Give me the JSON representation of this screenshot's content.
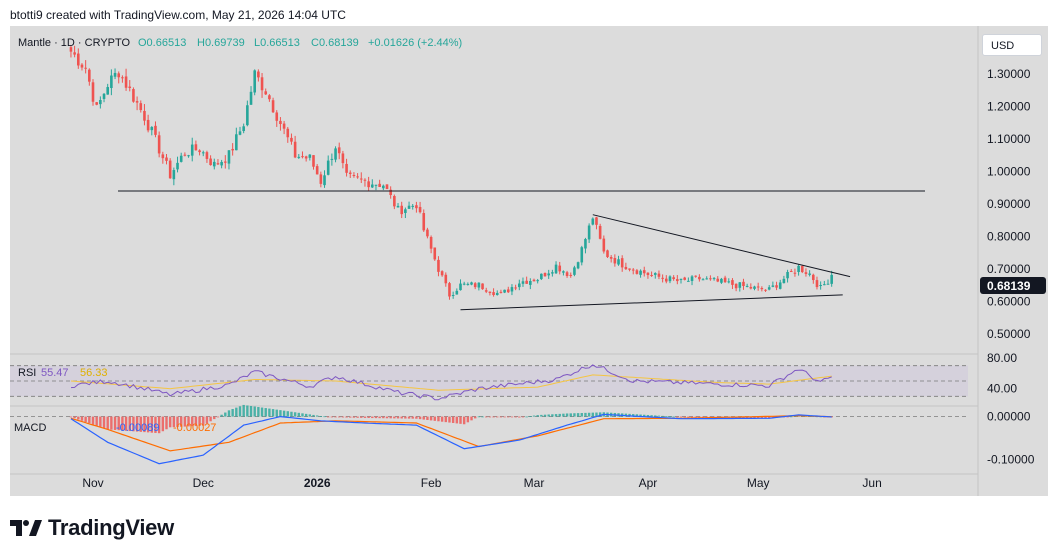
{
  "header": {
    "credit": "btotti9 created with TradingView.com, May 21, 2026 14:04 UTC"
  },
  "legend": {
    "symbol": "Mantle · 1D · CRYPTO",
    "open": "O0.66513",
    "high": "H0.69739",
    "low": "L0.66513",
    "close": "C0.68139",
    "change": "+0.01626 (+2.44%)"
  },
  "currency_button": "USD",
  "price_badge": "0.68139",
  "rsi_legend": {
    "name": "RSI",
    "value": "55.47",
    "ma": "56.33"
  },
  "macd_legend": {
    "name": "MACD",
    "macd": "-0.00089",
    "signal": "-0.00027"
  },
  "footer": {
    "brand": "TradingView"
  },
  "colors": {
    "up": "#26a69a",
    "down": "#ef5350",
    "rsi_line": "#7e57c2",
    "rsi_ma": "#f5c542",
    "macd_line": "#2962ff",
    "signal_line": "#ff6d00",
    "background": "#dcdcdc"
  },
  "chart_data": [
    {
      "type": "candlestick",
      "title": "Mantle · 1D · CRYPTO",
      "xlabels": [
        "Nov",
        "Dec",
        "2026",
        "Feb",
        "Mar",
        "Apr",
        "May",
        "Jun"
      ],
      "y_ticks": [
        "1.30000",
        "1.20000",
        "1.10000",
        "1.00000",
        "0.90000",
        "0.80000",
        "0.70000",
        "0.60000",
        "0.50000"
      ],
      "ylim": [
        0.45,
        1.39
      ],
      "grid": false,
      "last_price": 0.68139,
      "anchors": [
        {
          "date": "2025-10-26",
          "close": 1.37
        },
        {
          "date": "2025-10-30",
          "close": 1.32
        },
        {
          "date": "2025-11-02",
          "close": 1.19
        },
        {
          "date": "2025-11-05",
          "close": 1.27
        },
        {
          "date": "2025-11-08",
          "close": 1.31
        },
        {
          "date": "2025-11-11",
          "close": 1.25
        },
        {
          "date": "2025-11-15",
          "close": 1.17
        },
        {
          "date": "2025-11-19",
          "close": 1.07
        },
        {
          "date": "2025-11-22",
          "close": 0.99
        },
        {
          "date": "2025-11-26",
          "close": 1.06
        },
        {
          "date": "2025-11-30",
          "close": 1.07
        },
        {
          "date": "2025-12-04",
          "close": 1.02
        },
        {
          "date": "2025-12-08",
          "close": 1.05
        },
        {
          "date": "2025-12-12",
          "close": 1.15
        },
        {
          "date": "2025-12-15",
          "close": 1.3
        },
        {
          "date": "2025-12-18",
          "close": 1.25
        },
        {
          "date": "2025-12-22",
          "close": 1.15
        },
        {
          "date": "2025-12-26",
          "close": 1.05
        },
        {
          "date": "2025-12-30",
          "close": 1.04
        },
        {
          "date": "2026-01-02",
          "close": 0.97
        },
        {
          "date": "2026-01-06",
          "close": 1.08
        },
        {
          "date": "2026-01-09",
          "close": 0.98
        },
        {
          "date": "2026-01-14",
          "close": 0.97
        },
        {
          "date": "2026-01-19",
          "close": 0.96
        },
        {
          "date": "2026-01-23",
          "close": 0.88
        },
        {
          "date": "2026-01-28",
          "close": 0.9
        },
        {
          "date": "2026-01-30",
          "close": 0.82
        },
        {
          "date": "2026-02-03",
          "close": 0.7
        },
        {
          "date": "2026-02-06",
          "close": 0.62
        },
        {
          "date": "2026-02-09",
          "close": 0.65
        },
        {
          "date": "2026-02-14",
          "close": 0.65
        },
        {
          "date": "2026-02-20",
          "close": 0.62
        },
        {
          "date": "2026-02-25",
          "close": 0.66
        },
        {
          "date": "2026-03-02",
          "close": 0.67
        },
        {
          "date": "2026-03-07",
          "close": 0.71
        },
        {
          "date": "2026-03-11",
          "close": 0.68
        },
        {
          "date": "2026-03-14",
          "close": 0.76
        },
        {
          "date": "2026-03-17",
          "close": 0.86
        },
        {
          "date": "2026-03-20",
          "close": 0.75
        },
        {
          "date": "2026-03-24",
          "close": 0.72
        },
        {
          "date": "2026-03-28",
          "close": 0.7
        },
        {
          "date": "2026-04-02",
          "close": 0.68
        },
        {
          "date": "2026-04-06",
          "close": 0.67
        },
        {
          "date": "2026-04-10",
          "close": 0.66
        },
        {
          "date": "2026-04-15",
          "close": 0.67
        },
        {
          "date": "2026-04-20",
          "close": 0.66
        },
        {
          "date": "2026-04-25",
          "close": 0.65
        },
        {
          "date": "2026-04-30",
          "close": 0.64
        },
        {
          "date": "2026-05-04",
          "close": 0.635
        },
        {
          "date": "2026-05-08",
          "close": 0.67
        },
        {
          "date": "2026-05-12",
          "close": 0.705
        },
        {
          "date": "2026-05-15",
          "close": 0.685
        },
        {
          "date": "2026-05-18",
          "close": 0.64
        },
        {
          "date": "2026-05-20",
          "close": 0.665
        },
        {
          "date": "2026-05-21",
          "close": 0.68139
        }
      ],
      "horizontal_line": 0.94,
      "triangle_upper": [
        {
          "date": "2026-03-17",
          "price": 0.867
        },
        {
          "date": "2026-05-26",
          "price": 0.676
        }
      ],
      "triangle_lower": [
        {
          "date": "2026-02-09",
          "price": 0.574
        },
        {
          "date": "2026-05-24",
          "price": 0.62
        }
      ]
    },
    {
      "type": "line",
      "title": "RSI",
      "y_ticks": [
        "80.00",
        "40.00"
      ],
      "ylim": [
        20,
        80
      ],
      "bands": [
        70,
        50,
        30
      ],
      "series": [
        {
          "name": "RSI",
          "anchors": [
            {
              "date": "2025-10-26",
              "value": 44
            },
            {
              "date": "2025-11-05",
              "value": 50
            },
            {
              "date": "2025-11-15",
              "value": 40
            },
            {
              "date": "2025-11-22",
              "value": 32
            },
            {
              "date": "2025-12-08",
              "value": 45
            },
            {
              "date": "2025-12-15",
              "value": 62
            },
            {
              "date": "2025-12-30",
              "value": 43
            },
            {
              "date": "2026-01-06",
              "value": 56
            },
            {
              "date": "2026-01-23",
              "value": 35
            },
            {
              "date": "2026-02-03",
              "value": 27
            },
            {
              "date": "2026-02-14",
              "value": 40
            },
            {
              "date": "2026-03-07",
              "value": 52
            },
            {
              "date": "2026-03-17",
              "value": 72
            },
            {
              "date": "2026-03-28",
              "value": 50
            },
            {
              "date": "2026-04-20",
              "value": 46
            },
            {
              "date": "2026-05-04",
              "value": 44
            },
            {
              "date": "2026-05-12",
              "value": 66
            },
            {
              "date": "2026-05-18",
              "value": 48
            },
            {
              "date": "2026-05-21",
              "value": 55.47
            }
          ]
        },
        {
          "name": "RSI-based MA",
          "anchors": [
            {
              "date": "2025-10-26",
              "value": 50
            },
            {
              "date": "2025-11-22",
              "value": 40
            },
            {
              "date": "2025-12-15",
              "value": 52
            },
            {
              "date": "2026-01-06",
              "value": 50
            },
            {
              "date": "2026-02-03",
              "value": 38
            },
            {
              "date": "2026-03-02",
              "value": 42
            },
            {
              "date": "2026-03-17",
              "value": 58
            },
            {
              "date": "2026-04-20",
              "value": 48
            },
            {
              "date": "2026-05-04",
              "value": 46
            },
            {
              "date": "2026-05-21",
              "value": 56.33
            }
          ]
        }
      ]
    },
    {
      "type": "line",
      "title": "MACD",
      "y_ticks": [
        "0.00000",
        "-0.10000"
      ],
      "ylim": [
        -0.12,
        0.02
      ],
      "series": [
        {
          "name": "MACD",
          "anchors": [
            {
              "date": "2025-10-26",
              "value": -0.005
            },
            {
              "date": "2025-11-05",
              "value": -0.06
            },
            {
              "date": "2025-11-19",
              "value": -0.11
            },
            {
              "date": "2025-12-01",
              "value": -0.09
            },
            {
              "date": "2025-12-12",
              "value": -0.02
            },
            {
              "date": "2025-12-22",
              "value": 0.0
            },
            {
              "date": "2026-01-02",
              "value": -0.01
            },
            {
              "date": "2026-01-14",
              "value": -0.015
            },
            {
              "date": "2026-01-28",
              "value": -0.02
            },
            {
              "date": "2026-02-10",
              "value": -0.075
            },
            {
              "date": "2026-02-25",
              "value": -0.055
            },
            {
              "date": "2026-03-10",
              "value": -0.02
            },
            {
              "date": "2026-03-20",
              "value": 0.005
            },
            {
              "date": "2026-04-10",
              "value": -0.005
            },
            {
              "date": "2026-05-04",
              "value": -0.004
            },
            {
              "date": "2026-05-12",
              "value": 0.004
            },
            {
              "date": "2026-05-21",
              "value": -0.00089
            }
          ]
        },
        {
          "name": "Signal",
          "anchors": [
            {
              "date": "2025-10-26",
              "value": -0.004
            },
            {
              "date": "2025-11-05",
              "value": -0.03
            },
            {
              "date": "2025-11-22",
              "value": -0.08
            },
            {
              "date": "2025-12-08",
              "value": -0.06
            },
            {
              "date": "2025-12-22",
              "value": -0.015
            },
            {
              "date": "2026-01-06",
              "value": -0.01
            },
            {
              "date": "2026-01-28",
              "value": -0.015
            },
            {
              "date": "2026-02-14",
              "value": -0.07
            },
            {
              "date": "2026-03-02",
              "value": -0.045
            },
            {
              "date": "2026-03-20",
              "value": -0.005
            },
            {
              "date": "2026-04-10",
              "value": -0.004
            },
            {
              "date": "2026-05-12",
              "value": 0.002
            },
            {
              "date": "2026-05-21",
              "value": -0.00027
            }
          ]
        }
      ]
    }
  ]
}
